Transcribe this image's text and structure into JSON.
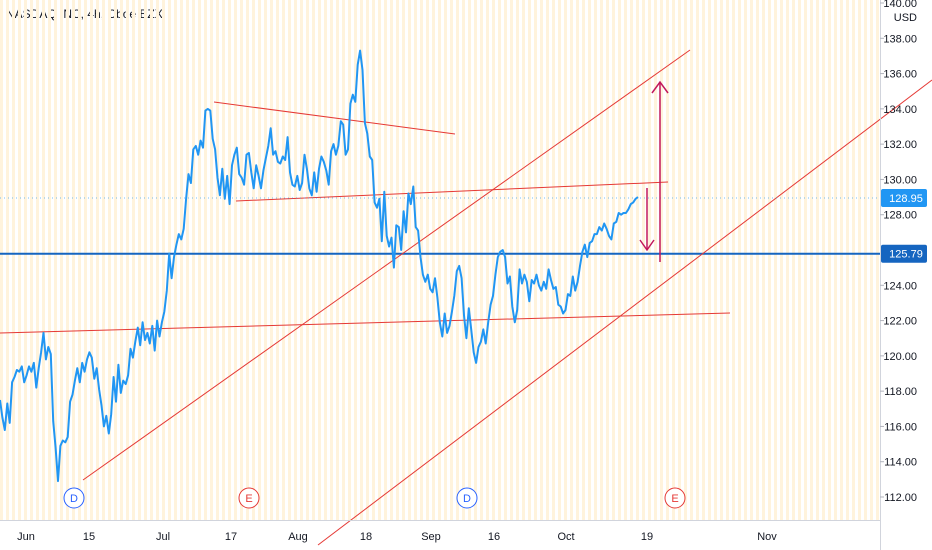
{
  "legend": {
    "symbol": "NASDAQ INC, 4h, Cboe BZX"
  },
  "colors": {
    "price": "#2196f3",
    "level": "#1565c0",
    "trend": "#e53935",
    "arrow": "#c2185b",
    "grid_band": "#fff3dc",
    "dividend": "#2962ff",
    "earnings": "#e53935",
    "last_label": "#2196f3"
  },
  "chart_data": {
    "type": "line",
    "title": "NASDAQ INC, 4h, Cboe BZX",
    "currency": "USD",
    "ylim": [
      111,
      140
    ],
    "y_ticks": [
      "140.00",
      "138.00",
      "136.00",
      "134.00",
      "132.00",
      "130.00",
      "128.00",
      "124.00",
      "122.00",
      "120.00",
      "118.00",
      "116.00",
      "114.00",
      "112.00"
    ],
    "x_ticks": [
      "Jun",
      "15",
      "Jul",
      "17",
      "Aug",
      "18",
      "Sep",
      "16",
      "Oct",
      "19",
      "Nov"
    ],
    "last_price": "128.95",
    "horizontal_level": "125.79",
    "events": [
      "D",
      "E",
      "D",
      "E"
    ],
    "series": [
      {
        "values": [
          117.5,
          116.5,
          115.8,
          117.3,
          116.2,
          118.5,
          118.8,
          119.2,
          119.1,
          119.4,
          118.5,
          118.9,
          119.4,
          119.1,
          119.6,
          118.2,
          119.3,
          120.2,
          121.3,
          119.8,
          120.5,
          120.1,
          116.3,
          114.8,
          112.9,
          114.9,
          115.2,
          115.1,
          115.4,
          117.4,
          117.8,
          118.6,
          119.3,
          118.5,
          119.6,
          119.1,
          119.8,
          120.2,
          119.9,
          118.7,
          119.3,
          118.1,
          117.2,
          116.0,
          116.6,
          115.6,
          116.7,
          118.8,
          117.4,
          119.5,
          117.9,
          118.6,
          118.4,
          118.9,
          120.4,
          119.9,
          120.8,
          121.6,
          120.6,
          121.9,
          120.9,
          121.3,
          120.7,
          121.7,
          120.3,
          122.0,
          121.1,
          121.9,
          122.5,
          123.7,
          125.8,
          124.4,
          125.6,
          126.3,
          126.9,
          126.6,
          127.2,
          128.9,
          130.3,
          129.8,
          131.7,
          131.9,
          131.4,
          132.2,
          131.8,
          133.9,
          134.0,
          133.9,
          132.3,
          131.7,
          130.1,
          129.1,
          130.6,
          128.9,
          130.2,
          128.6,
          130.8,
          131.4,
          131.8,
          130.3,
          130.1,
          129.7,
          131.4,
          131.5,
          130.4,
          129.5,
          130.8,
          130.2,
          129.5,
          130.5,
          131.2,
          131.9,
          132.9,
          131.4,
          131.6,
          131.0,
          130.9,
          131.3,
          131.1,
          132.4,
          130.4,
          129.7,
          129.6,
          130.2,
          129.4,
          129.8,
          131.4,
          130.6,
          129.5,
          129.1,
          130.4,
          129.3,
          130.6,
          131.3,
          131.0,
          130.5,
          129.7,
          131.6,
          132.0,
          131.4,
          131.9,
          133.3,
          133.1,
          131.4,
          131.7,
          134.3,
          134.8,
          134.4,
          136.5,
          137.3,
          136.2,
          133.2,
          132.6,
          131.3,
          131.1,
          128.7,
          128.4,
          128.9,
          126.5,
          129.3,
          126.8,
          126.2,
          126.7,
          125.0,
          127.4,
          127.3,
          126.0,
          128.2,
          127.0,
          129.2,
          128.6,
          129.6,
          127.3,
          127.1,
          125.6,
          124.6,
          124.2,
          124.6,
          123.8,
          123.6,
          124.4,
          123.3,
          121.9,
          121.1,
          122.4,
          121.3,
          121.7,
          122.5,
          123.4,
          124.8,
          125.1,
          124.4,
          122.3,
          121.0,
          122.7,
          121.5,
          120.2,
          119.6,
          120.5,
          120.8,
          121.5,
          120.7,
          121.9,
          122.9,
          123.4,
          124.6,
          125.6,
          125.9,
          126.0,
          125.6,
          124.1,
          124.5,
          122.8,
          121.9,
          122.6,
          124.9,
          124.1,
          124.6,
          124.2,
          123.1,
          124.3,
          124.1,
          124.6,
          124.0,
          123.7,
          124.2,
          123.8,
          124.9,
          124.3,
          123.8,
          123.9,
          122.9,
          122.8,
          122.4,
          122.6,
          123.5,
          123.4,
          124.5,
          123.7,
          124.2,
          125.1,
          125.9,
          126.3,
          125.6,
          126.4,
          126.5,
          126.9,
          126.9,
          127.3,
          127.1,
          127.5,
          127.2,
          126.8,
          126.6,
          127.5,
          127.6,
          128.1,
          128.0,
          128.1,
          128.1,
          128.3,
          128.6,
          128.7,
          128.9,
          129.0
        ]
      }
    ]
  }
}
